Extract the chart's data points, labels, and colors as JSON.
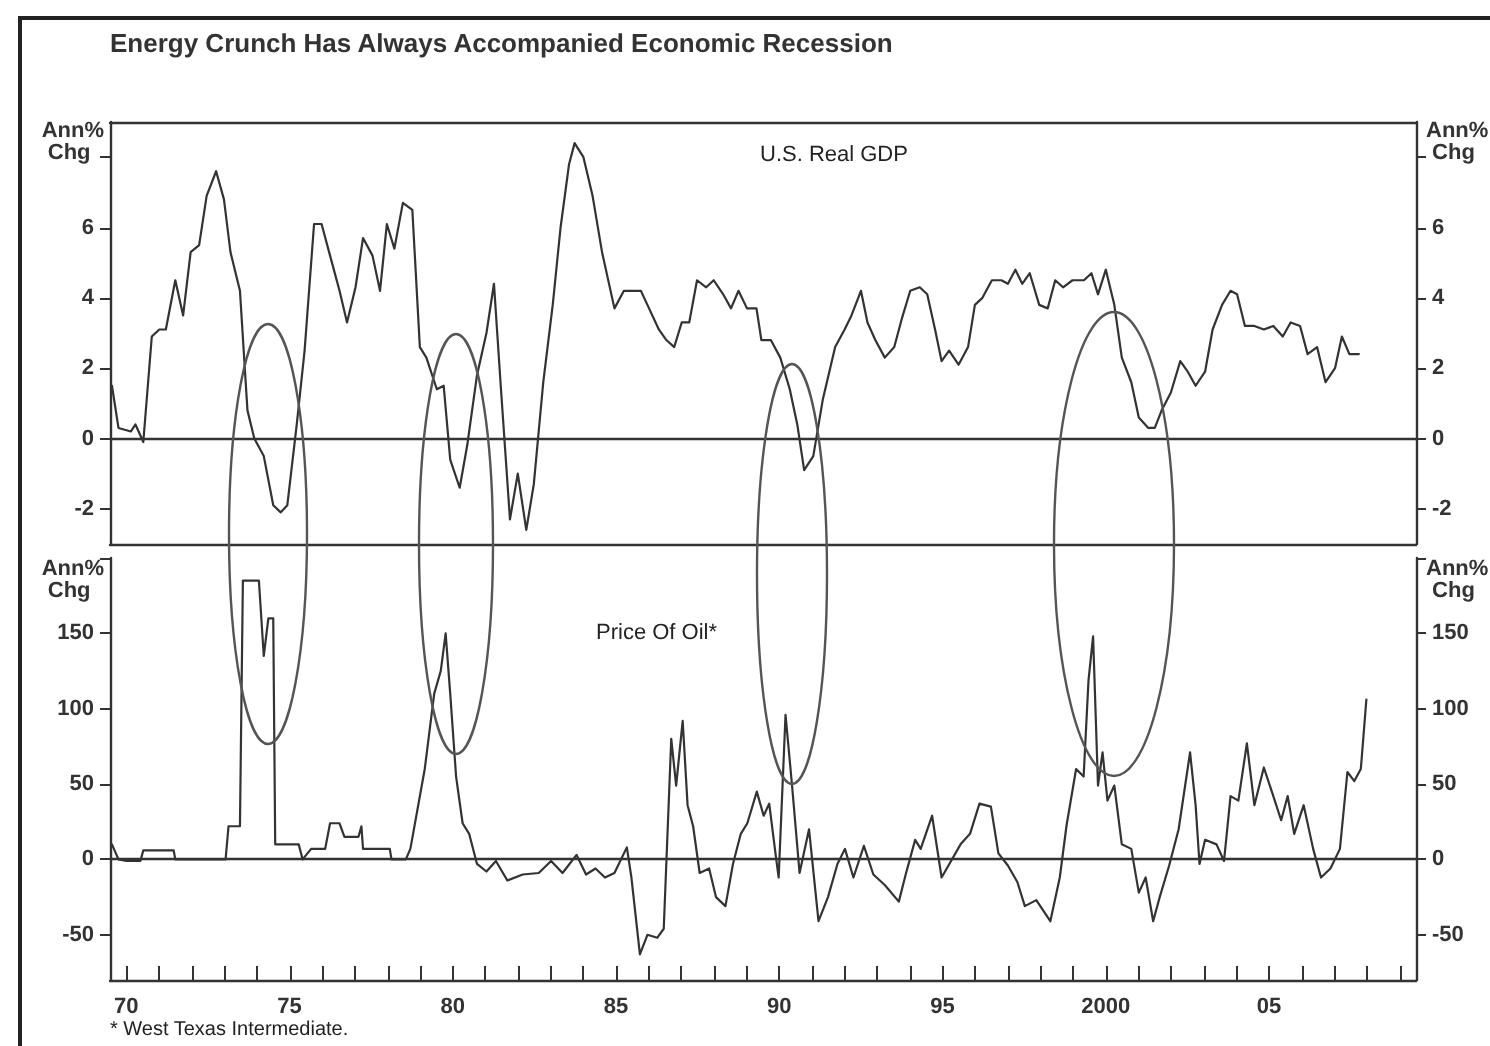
{
  "chart_data": [
    {
      "type": "line",
      "title": "Energy Crunch Has Always Accompanied Economic Recession",
      "ylabel": "Ann% Chg",
      "y2label": "Ann% Chg",
      "xlim": [
        1969.5,
        2009.5
      ],
      "ylim": [
        -3,
        9
      ],
      "yticks": [
        -2,
        0,
        2,
        4,
        6,
        {
          "value": 8,
          "label": null
        }
      ],
      "y2lim": [
        -3,
        9
      ],
      "y2ticks": [
        -2,
        0,
        2,
        4,
        6,
        {
          "value": 8,
          "label": null
        }
      ],
      "tick_labels": "y",
      "marker": "none",
      "line_style": "solid",
      "legend": false,
      "ref_lines": [
        {
          "axis": "y",
          "value": 0,
          "color": "#333333"
        }
      ],
      "series": [
        {
          "name": "U.S. Real GDP",
          "color": "#333333",
          "x": [
            1969.56,
            1969.76,
            1970.14,
            1970.28,
            1970.52,
            1970.78,
            1971.01,
            1971.21,
            1971.5,
            1971.74,
            1971.97,
            1972.23,
            1972.46,
            1972.75,
            1972.99,
            1973.19,
            1973.48,
            1973.71,
            1973.92,
            1974.21,
            1974.5,
            1974.73,
            1974.93,
            1975.22,
            1975.46,
            1975.75,
            1975.98,
            1976.24,
            1976.53,
            1976.76,
            1977.02,
            1977.25,
            1977.54,
            1977.77,
            1977.98,
            1978.21,
            1978.47,
            1978.76,
            1978.99,
            1979.19,
            1979.51,
            1979.72,
            1979.92,
            1980.21,
            1980.44,
            1980.74,
            1981.03,
            1981.26,
            1981.46,
            1981.75,
            1981.99,
            1982.25,
            1982.48,
            1982.77,
            1983.06,
            1983.3,
            1983.56,
            1983.73,
            1984.0,
            1984.28,
            1984.57,
            1984.95,
            1985.24,
            1985.53,
            1985.76,
            1985.96,
            1986.31,
            1986.54,
            1986.78,
            1987.01,
            1987.24,
            1987.48,
            1987.76,
            1987.99,
            1988.28,
            1988.52,
            1988.75,
            1989.01,
            1989.3,
            1989.45,
            1989.74,
            1990.03,
            1990.32,
            1990.55,
            1990.76,
            1991.04,
            1991.33,
            1991.71,
            1992.0,
            1992.21,
            1992.5,
            1992.7,
            1992.94,
            1993.23,
            1993.52,
            1993.75,
            1994.01,
            1994.3,
            1994.53,
            1994.77,
            1994.97,
            1995.2,
            1995.49,
            1995.78,
            1995.99,
            1996.22,
            1996.51,
            1996.8,
            1997.0,
            1997.23,
            1997.44,
            1997.67,
            1997.96,
            1998.22,
            1998.45,
            1998.69,
            1998.98,
            1999.33,
            1999.56,
            1999.76,
            2000.0,
            2000.26,
            2000.49,
            2000.78,
            2001.01,
            2001.3,
            2001.5,
            2001.71,
            2001.99,
            2002.28,
            2002.51,
            2002.75,
            2003.04,
            2003.27,
            2003.56,
            2003.82,
            2004.02,
            2004.26,
            2004.55,
            2004.84,
            2005.13,
            2005.42,
            2005.66,
            2005.95,
            2006.18,
            2006.47,
            2006.73,
            2007.02,
            2007.23,
            2007.46,
            2007.75
          ],
          "values": [
            1.5,
            0.3,
            0.2,
            0.4,
            -0.1,
            2.9,
            3.1,
            3.1,
            4.5,
            3.5,
            5.3,
            5.5,
            6.9,
            7.6,
            6.8,
            5.3,
            4.2,
            0.8,
            0.0,
            -0.5,
            -1.9,
            -2.1,
            -1.9,
            0.4,
            2.5,
            6.1,
            6.1,
            5.2,
            4.2,
            3.3,
            4.3,
            5.7,
            5.2,
            4.2,
            6.1,
            5.4,
            6.7,
            6.5,
            2.6,
            2.3,
            1.4,
            1.5,
            -0.6,
            -1.4,
            -0.2,
            1.8,
            3.0,
            4.4,
            1.6,
            -2.3,
            -1.0,
            -2.6,
            -1.3,
            1.6,
            3.8,
            6.0,
            7.8,
            8.4,
            8.0,
            6.9,
            5.3,
            3.7,
            4.2,
            4.2,
            4.2,
            3.8,
            3.1,
            2.8,
            2.6,
            3.3,
            3.3,
            4.5,
            4.3,
            4.5,
            4.1,
            3.7,
            4.2,
            3.7,
            3.7,
            2.8,
            2.8,
            2.3,
            1.4,
            0.4,
            -0.9,
            -0.5,
            1.1,
            2.6,
            3.1,
            3.5,
            4.2,
            3.3,
            2.8,
            2.3,
            2.6,
            3.4,
            4.2,
            4.3,
            4.1,
            3.1,
            2.2,
            2.5,
            2.1,
            2.6,
            3.8,
            4.0,
            4.5,
            4.5,
            4.4,
            4.8,
            4.4,
            4.7,
            3.8,
            3.7,
            4.5,
            4.3,
            4.5,
            4.5,
            4.7,
            4.1,
            4.8,
            3.8,
            2.3,
            1.6,
            0.6,
            0.3,
            0.3,
            0.8,
            1.3,
            2.2,
            1.9,
            1.5,
            1.9,
            3.1,
            3.8,
            4.2,
            4.1,
            3.2,
            3.2,
            3.1,
            3.2,
            2.9,
            3.3,
            3.2,
            2.4,
            2.6,
            1.6,
            2.0,
            2.9,
            2.4,
            2.4
          ]
        }
      ]
    },
    {
      "type": "line",
      "ylabel": "Ann% Chg",
      "y2label": "Ann% Chg",
      "xlim": [
        1969.5,
        2009.5
      ],
      "ylim": [
        -80,
        200
      ],
      "yticks": [
        -50,
        0,
        50,
        100,
        150,
        {
          "value": 200,
          "label": null
        }
      ],
      "y2lim": [
        -80,
        200
      ],
      "y2ticks": [
        -50,
        0,
        50,
        100,
        150,
        {
          "value": 200,
          "label": null
        }
      ],
      "xticks": [
        {
          "value": 1970,
          "label": "70"
        },
        {
          "value": 1971,
          "label": null
        },
        {
          "value": 1972,
          "label": null
        },
        {
          "value": 1973,
          "label": null
        },
        {
          "value": 1974,
          "label": null
        },
        {
          "value": 1975,
          "label": "75"
        },
        {
          "value": 1976,
          "label": null
        },
        {
          "value": 1977,
          "label": null
        },
        {
          "value": 1978,
          "label": null
        },
        {
          "value": 1979,
          "label": null
        },
        {
          "value": 1980,
          "label": "80"
        },
        {
          "value": 1981,
          "label": null
        },
        {
          "value": 1982,
          "label": null
        },
        {
          "value": 1983,
          "label": null
        },
        {
          "value": 1984,
          "label": null
        },
        {
          "value": 1985,
          "label": "85"
        },
        {
          "value": 1986,
          "label": null
        },
        {
          "value": 1987,
          "label": null
        },
        {
          "value": 1988,
          "label": null
        },
        {
          "value": 1989,
          "label": null
        },
        {
          "value": 1990,
          "label": "90"
        },
        {
          "value": 1991,
          "label": null
        },
        {
          "value": 1992,
          "label": null
        },
        {
          "value": 1993,
          "label": null
        },
        {
          "value": 1994,
          "label": null
        },
        {
          "value": 1995,
          "label": "95"
        },
        {
          "value": 1996,
          "label": null
        },
        {
          "value": 1997,
          "label": null
        },
        {
          "value": 1998,
          "label": null
        },
        {
          "value": 1999,
          "label": null
        },
        {
          "value": 2000,
          "label": "2000"
        },
        {
          "value": 2001,
          "label": null
        },
        {
          "value": 2002,
          "label": null
        },
        {
          "value": 2003,
          "label": null
        },
        {
          "value": 2004,
          "label": null
        },
        {
          "value": 2005,
          "label": "05"
        },
        {
          "value": 2006,
          "label": null
        },
        {
          "value": 2007,
          "label": null
        },
        {
          "value": 2008,
          "label": null
        },
        {
          "value": 2009,
          "label": null
        }
      ],
      "marker": "none",
      "line_style": "solid",
      "legend": false,
      "annotations": [
        "* West Texas Intermediate."
      ],
      "ref_lines": [
        {
          "axis": "y",
          "value": 0,
          "color": "#333333"
        }
      ],
      "series": [
        {
          "name": "Price Of Oil*",
          "color": "#333333",
          "x": [
            1969.56,
            1969.76,
            1970.0,
            1970.43,
            1970.52,
            1971.45,
            1971.5,
            1973.04,
            1973.13,
            1973.48,
            1973.57,
            1974.06,
            1974.21,
            1974.35,
            1974.5,
            1974.56,
            1975.28,
            1975.4,
            1975.66,
            1976.09,
            1976.24,
            1976.53,
            1976.68,
            1977.11,
            1977.2,
            1977.25,
            1978.07,
            1978.12,
            1978.56,
            1978.7,
            1979.14,
            1979.43,
            1979.63,
            1979.78,
            1979.92,
            1980.1,
            1980.3,
            1980.5,
            1980.74,
            1981.03,
            1981.32,
            1981.67,
            1982.14,
            1982.63,
            1983.01,
            1983.36,
            1983.79,
            1984.08,
            1984.37,
            1984.66,
            1984.95,
            1985.33,
            1985.47,
            1985.73,
            1985.96,
            1986.26,
            1986.46,
            1986.69,
            1986.84,
            1987.04,
            1987.19,
            1987.36,
            1987.56,
            1987.85,
            1988.06,
            1988.35,
            1988.58,
            1988.82,
            1989.02,
            1989.31,
            1989.52,
            1989.69,
            1989.9,
            1989.98,
            1990.19,
            1990.39,
            1990.62,
            1990.91,
            1991.2,
            1991.49,
            1991.78,
            1992.01,
            1992.27,
            1992.59,
            1992.88,
            1993.23,
            1993.66,
            1993.87,
            1994.16,
            1994.33,
            1994.68,
            1994.97,
            1995.26,
            1995.55,
            1995.84,
            1996.13,
            1996.48,
            1996.71,
            1997.0,
            1997.29,
            1997.52,
            1997.87,
            1998.3,
            1998.59,
            1998.8,
            1999.09,
            1999.32,
            1999.47,
            1999.61,
            1999.76,
            1999.9,
            2000.05,
            2000.26,
            2000.49,
            2000.78,
            2001.01,
            2001.22,
            2001.45,
            2001.65,
            2001.94,
            2002.23,
            2002.58,
            2002.75,
            2002.87,
            2003.04,
            2003.39,
            2003.62,
            2003.82,
            2004.06,
            2004.32,
            2004.55,
            2004.84,
            2005.13,
            2005.37,
            2005.57,
            2005.77,
            2006.06,
            2006.35,
            2006.59,
            2006.88,
            2007.17,
            2007.4,
            2007.61,
            2007.81,
            2007.98
          ],
          "values": [
            10,
            0,
            -1,
            -1,
            6,
            6,
            0,
            0,
            22,
            22,
            185,
            185,
            135,
            160,
            160,
            10,
            10,
            0,
            7,
            7,
            24,
            24,
            15,
            15,
            22,
            7,
            7,
            0,
            0,
            7,
            60,
            110,
            125,
            150,
            110,
            55,
            24,
            17,
            -3,
            -8,
            -1,
            -14,
            -10,
            -9,
            -1,
            -9,
            3,
            -10,
            -6,
            -12,
            -9,
            8,
            -12,
            -63,
            -50,
            -52,
            -46,
            80,
            49,
            92,
            36,
            22,
            -9,
            -6,
            -25,
            -31,
            -3,
            17,
            24,
            45,
            29,
            37,
            1,
            -12,
            96,
            49,
            -9,
            20,
            -41,
            -25,
            -3,
            7,
            -12,
            9,
            -10,
            -17,
            -28,
            -10,
            13,
            7,
            29,
            -12,
            -1,
            10,
            17,
            37,
            35,
            4,
            -4,
            -15,
            -31,
            -27,
            -41,
            -12,
            23,
            60,
            55,
            119,
            148,
            49,
            71,
            39,
            49,
            10,
            7,
            -22,
            -12,
            -41,
            -25,
            -4,
            20,
            71,
            36,
            -3,
            13,
            10,
            -1,
            42,
            39,
            77,
            36,
            61,
            42,
            26,
            42,
            17,
            36,
            7,
            -12,
            -6,
            7,
            58,
            52,
            60,
            106
          ]
        }
      ]
    }
  ]
}
